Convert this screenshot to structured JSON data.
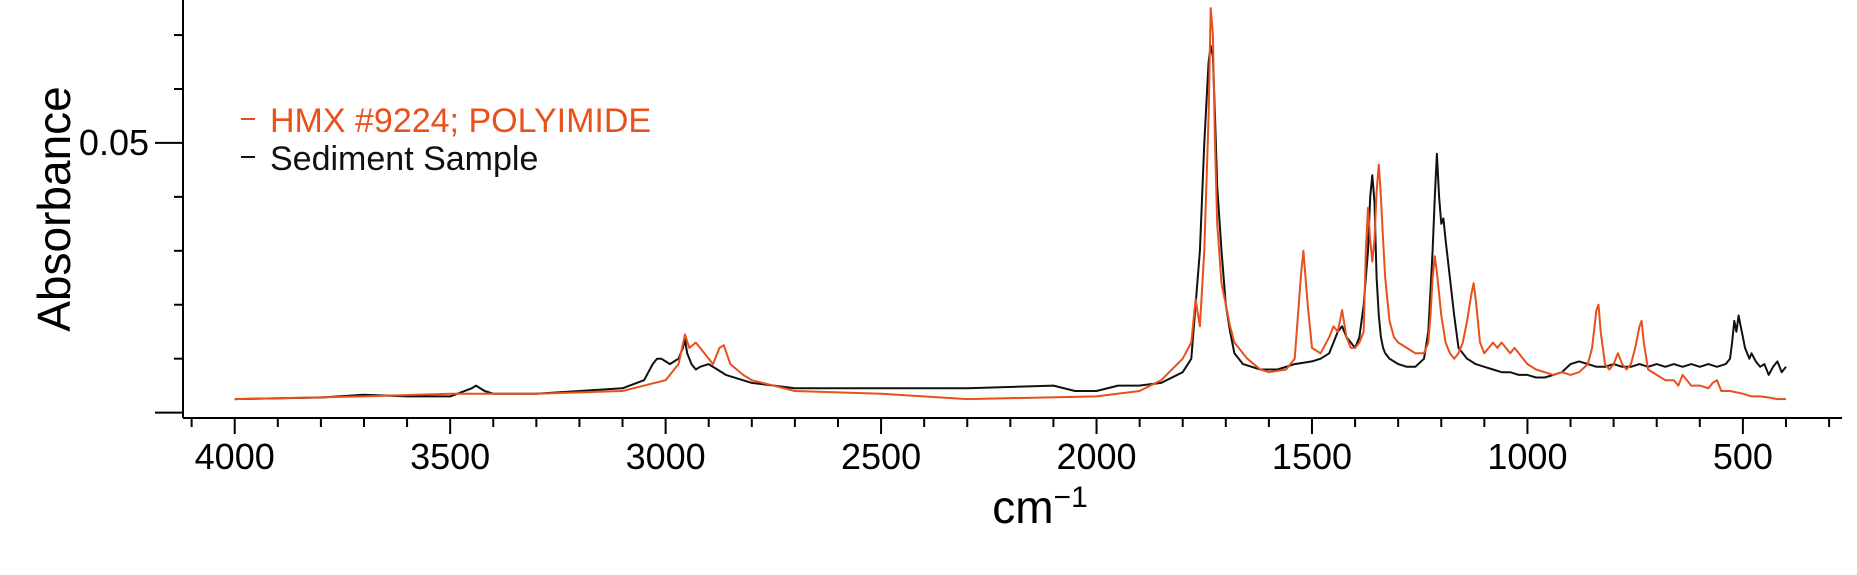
{
  "chart_data": {
    "type": "line",
    "xlabel": "cm",
    "xlabel_exponent": "−1",
    "ylabel": "Absorbance",
    "x_reversed": true,
    "xlim": [
      4120,
      270
    ],
    "ylim": [
      -0.001,
      0.0765
    ],
    "x_major_ticks": [
      4000,
      3500,
      3000,
      2500,
      2000,
      1500,
      1000,
      500
    ],
    "x_tick_labels": [
      "4000",
      "3500",
      "3000",
      "2500",
      "2000",
      "1500",
      "1000",
      "500"
    ],
    "x_minor_step": 100,
    "y_major_ticks": [
      0,
      0.05
    ],
    "y_tick_labels": [
      "",
      "0.05"
    ],
    "y_minor_step": 0.01,
    "grid": false,
    "legend_position": "top-left",
    "colors": {
      "HMX": "#e8501c",
      "Sediment": "#111111"
    },
    "series": [
      {
        "name": "HMX #9224; POLYIMIDE",
        "color": "#e8501c",
        "x": [
          4000,
          3700,
          3500,
          3300,
          3100,
          3000,
          2970,
          2955,
          2945,
          2930,
          2910,
          2890,
          2875,
          2865,
          2850,
          2820,
          2800,
          2700,
          2500,
          2300,
          2000,
          1900,
          1850,
          1800,
          1780,
          1770,
          1760,
          1750,
          1740,
          1735,
          1730,
          1725,
          1720,
          1710,
          1700,
          1690,
          1680,
          1650,
          1620,
          1600,
          1560,
          1540,
          1525,
          1520,
          1510,
          1500,
          1480,
          1460,
          1450,
          1440,
          1430,
          1420,
          1410,
          1400,
          1390,
          1380,
          1375,
          1370,
          1365,
          1360,
          1355,
          1350,
          1345,
          1340,
          1335,
          1330,
          1320,
          1310,
          1300,
          1280,
          1260,
          1240,
          1230,
          1225,
          1220,
          1215,
          1210,
          1200,
          1190,
          1180,
          1170,
          1160,
          1150,
          1140,
          1130,
          1125,
          1120,
          1115,
          1110,
          1100,
          1090,
          1080,
          1070,
          1060,
          1050,
          1040,
          1030,
          1020,
          1010,
          1000,
          980,
          960,
          940,
          920,
          900,
          880,
          860,
          850,
          840,
          835,
          830,
          820,
          810,
          800,
          790,
          780,
          770,
          760,
          750,
          740,
          735,
          730,
          720,
          700,
          680,
          660,
          650,
          640,
          630,
          620,
          600,
          580,
          570,
          560,
          550,
          530,
          500,
          480,
          460,
          440,
          420,
          400
        ],
        "y": [
          0.0025,
          0.003,
          0.0035,
          0.0035,
          0.004,
          0.006,
          0.009,
          0.0145,
          0.012,
          0.013,
          0.011,
          0.009,
          0.012,
          0.0125,
          0.009,
          0.007,
          0.006,
          0.004,
          0.0035,
          0.0025,
          0.003,
          0.004,
          0.006,
          0.01,
          0.013,
          0.021,
          0.016,
          0.03,
          0.055,
          0.075,
          0.07,
          0.05,
          0.035,
          0.024,
          0.02,
          0.016,
          0.013,
          0.01,
          0.008,
          0.0075,
          0.008,
          0.01,
          0.026,
          0.03,
          0.02,
          0.012,
          0.011,
          0.014,
          0.016,
          0.015,
          0.019,
          0.014,
          0.012,
          0.012,
          0.013,
          0.015,
          0.03,
          0.038,
          0.032,
          0.028,
          0.032,
          0.041,
          0.046,
          0.04,
          0.032,
          0.025,
          0.017,
          0.014,
          0.013,
          0.012,
          0.011,
          0.011,
          0.013,
          0.018,
          0.025,
          0.029,
          0.026,
          0.018,
          0.013,
          0.011,
          0.01,
          0.011,
          0.013,
          0.017,
          0.022,
          0.024,
          0.021,
          0.017,
          0.013,
          0.011,
          0.012,
          0.013,
          0.012,
          0.013,
          0.012,
          0.011,
          0.012,
          0.011,
          0.01,
          0.009,
          0.008,
          0.0075,
          0.007,
          0.0075,
          0.007,
          0.0075,
          0.009,
          0.012,
          0.019,
          0.02,
          0.015,
          0.009,
          0.008,
          0.009,
          0.011,
          0.009,
          0.008,
          0.009,
          0.012,
          0.016,
          0.017,
          0.013,
          0.008,
          0.007,
          0.006,
          0.006,
          0.005,
          0.007,
          0.006,
          0.005,
          0.005,
          0.0045,
          0.0055,
          0.006,
          0.004,
          0.004,
          0.0035,
          0.003,
          0.003,
          0.0028,
          0.0025,
          0.0025
        ]
      },
      {
        "name": "Sediment Sample",
        "color": "#111111",
        "x": [
          4000,
          3800,
          3700,
          3600,
          3500,
          3450,
          3440,
          3420,
          3400,
          3300,
          3200,
          3100,
          3050,
          3030,
          3020,
          3010,
          3000,
          2990,
          2980,
          2970,
          2960,
          2955,
          2950,
          2940,
          2930,
          2920,
          2900,
          2880,
          2860,
          2800,
          2700,
          2500,
          2300,
          2100,
          2050,
          2000,
          1950,
          1900,
          1850,
          1800,
          1780,
          1770,
          1760,
          1750,
          1740,
          1735,
          1730,
          1725,
          1720,
          1710,
          1700,
          1690,
          1680,
          1660,
          1640,
          1620,
          1600,
          1580,
          1560,
          1540,
          1500,
          1480,
          1460,
          1440,
          1430,
          1420,
          1410,
          1400,
          1390,
          1380,
          1370,
          1365,
          1360,
          1355,
          1350,
          1345,
          1340,
          1335,
          1330,
          1320,
          1300,
          1280,
          1260,
          1240,
          1230,
          1220,
          1215,
          1210,
          1205,
          1200,
          1195,
          1190,
          1180,
          1170,
          1160,
          1140,
          1120,
          1100,
          1080,
          1060,
          1040,
          1020,
          1000,
          980,
          960,
          940,
          920,
          900,
          880,
          860,
          840,
          820,
          800,
          780,
          760,
          740,
          720,
          700,
          680,
          660,
          640,
          620,
          600,
          580,
          560,
          540,
          530,
          525,
          520,
          515,
          510,
          505,
          500,
          495,
          490,
          485,
          480,
          470,
          460,
          450,
          440,
          430,
          420,
          410,
          400
        ],
        "y": [
          0.0025,
          0.0028,
          0.0033,
          0.003,
          0.003,
          0.0045,
          0.005,
          0.004,
          0.0035,
          0.0035,
          0.004,
          0.0045,
          0.006,
          0.009,
          0.01,
          0.01,
          0.0095,
          0.009,
          0.0095,
          0.01,
          0.012,
          0.0135,
          0.011,
          0.009,
          0.008,
          0.0085,
          0.009,
          0.008,
          0.007,
          0.0055,
          0.0045,
          0.0045,
          0.0045,
          0.005,
          0.004,
          0.004,
          0.005,
          0.005,
          0.0055,
          0.0075,
          0.01,
          0.02,
          0.03,
          0.05,
          0.065,
          0.068,
          0.066,
          0.055,
          0.042,
          0.03,
          0.02,
          0.015,
          0.011,
          0.009,
          0.0085,
          0.008,
          0.008,
          0.008,
          0.0085,
          0.009,
          0.0095,
          0.01,
          0.011,
          0.015,
          0.016,
          0.014,
          0.013,
          0.012,
          0.014,
          0.02,
          0.03,
          0.04,
          0.044,
          0.039,
          0.025,
          0.018,
          0.014,
          0.012,
          0.011,
          0.01,
          0.009,
          0.0085,
          0.0085,
          0.01,
          0.015,
          0.03,
          0.04,
          0.048,
          0.04,
          0.035,
          0.036,
          0.032,
          0.025,
          0.018,
          0.012,
          0.01,
          0.009,
          0.0085,
          0.008,
          0.0075,
          0.0075,
          0.007,
          0.007,
          0.0065,
          0.0065,
          0.007,
          0.0075,
          0.009,
          0.0095,
          0.009,
          0.0085,
          0.0085,
          0.009,
          0.0085,
          0.0085,
          0.009,
          0.0085,
          0.009,
          0.0085,
          0.009,
          0.0085,
          0.009,
          0.0085,
          0.009,
          0.0085,
          0.009,
          0.01,
          0.013,
          0.017,
          0.015,
          0.018,
          0.016,
          0.014,
          0.012,
          0.011,
          0.01,
          0.011,
          0.0095,
          0.0085,
          0.009,
          0.007,
          0.0085,
          0.0095,
          0.0075,
          0.0085
        ]
      }
    ]
  },
  "ui": {
    "colors": {
      "axis": "#000000",
      "background": "#ffffff"
    }
  }
}
